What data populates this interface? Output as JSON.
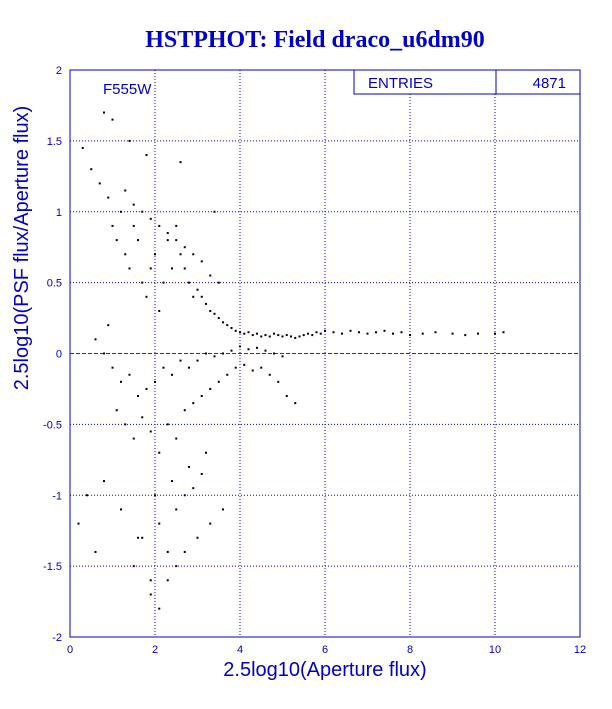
{
  "chart_data": {
    "type": "scatter",
    "title": "HSTPHOT: Field draco_u6dm90",
    "xlabel": "2.5log10(Aperture flux)",
    "ylabel": "2.5log10(PSF flux/Aperture flux)",
    "filter_label": "F555W",
    "stats_box": {
      "label": "ENTRIES",
      "value": "4871"
    },
    "xlim": [
      0,
      12
    ],
    "ylim": [
      -2,
      2
    ],
    "x_ticks": [
      "0",
      "2",
      "4",
      "6",
      "8",
      "10",
      "12"
    ],
    "y_ticks": [
      "-2",
      "-1.5",
      "-1",
      "-0.5",
      "0",
      "0.5",
      "1",
      "1.5",
      "2"
    ],
    "grid": true,
    "reference_line": {
      "y": 0
    },
    "colors": {
      "axes": "#0000cc",
      "grid": "#0000cc",
      "title": "#0000cc",
      "points": "#000000",
      "reference_line": "#cc0000",
      "background": "#ffffff"
    },
    "points": {
      "x": [
        0.6,
        0.8,
        0.9,
        1.0,
        1.1,
        1.2,
        1.3,
        1.4,
        1.5,
        1.6,
        1.7,
        1.8,
        1.9,
        2.0,
        2.1,
        2.2,
        2.3,
        2.4,
        2.5,
        2.6,
        2.7,
        2.8,
        2.9,
        3.0,
        3.1,
        3.2,
        3.3,
        3.4,
        3.5,
        3.6,
        3.7,
        3.8,
        3.9,
        4.0,
        4.1,
        4.2,
        4.3,
        4.4,
        4.5,
        4.6,
        4.7,
        4.8,
        4.9,
        5.0,
        5.1,
        5.2,
        5.3,
        5.4,
        5.5,
        5.6,
        5.7,
        5.8,
        5.9,
        6.0,
        6.2,
        6.4,
        6.6,
        6.8,
        7.0,
        7.2,
        7.4,
        7.6,
        7.8,
        8.0,
        8.3,
        8.6,
        9.0,
        9.3,
        9.6,
        10.0,
        10.2,
        1.0,
        1.2,
        1.4,
        1.6,
        1.8,
        2.0,
        2.2,
        2.4,
        2.6,
        2.8,
        3.0,
        3.2,
        3.4,
        3.6,
        3.8,
        4.0,
        4.2,
        4.4,
        4.6,
        4.8,
        5.0,
        1.1,
        1.3,
        1.5,
        1.7,
        1.9,
        2.1,
        2.3,
        2.5,
        2.7,
        2.9,
        3.1,
        3.3,
        3.5,
        3.7,
        3.9,
        4.1,
        4.3,
        4.5,
        4.7,
        4.9,
        5.1,
        5.3,
        0.3,
        0.5,
        0.7,
        0.9,
        1.3,
        1.5,
        1.7,
        1.9,
        2.1,
        2.3,
        2.5,
        2.7,
        2.9,
        3.1,
        3.3,
        3.5,
        0.2,
        0.4,
        0.6,
        0.8,
        1.2,
        1.6,
        2.0,
        2.4,
        2.8,
        3.2,
        1.5,
        1.7,
        1.9,
        2.1,
        2.3,
        2.5,
        2.7,
        2.9,
        3.1,
        1.9,
        2.1,
        2.3,
        2.5,
        2.7,
        3.0,
        3.3,
        3.6,
        0.8,
        1.0,
        1.4,
        1.8,
        2.6,
        3.4
      ],
      "y": [
        0.1,
        0.0,
        0.2,
        0.9,
        0.8,
        1.0,
        0.7,
        0.6,
        0.9,
        0.8,
        0.5,
        0.4,
        0.6,
        0.7,
        0.3,
        0.5,
        0.8,
        0.6,
        0.9,
        0.7,
        0.6,
        0.5,
        0.4,
        0.45,
        0.4,
        0.35,
        0.3,
        0.28,
        0.25,
        0.22,
        0.2,
        0.18,
        0.16,
        0.15,
        0.14,
        0.15,
        0.13,
        0.14,
        0.12,
        0.13,
        0.12,
        0.14,
        0.13,
        0.12,
        0.13,
        0.12,
        0.11,
        0.12,
        0.13,
        0.14,
        0.13,
        0.15,
        0.14,
        0.16,
        0.15,
        0.14,
        0.16,
        0.15,
        0.14,
        0.15,
        0.16,
        0.14,
        0.15,
        0.13,
        0.14,
        0.15,
        0.14,
        0.13,
        0.14,
        0.14,
        0.15,
        -0.1,
        -0.2,
        -0.15,
        -0.3,
        -0.25,
        -0.2,
        -0.1,
        -0.15,
        -0.05,
        -0.1,
        -0.05,
        0.0,
        -0.02,
        0.0,
        0.02,
        0.05,
        0.03,
        0.04,
        0.02,
        0.0,
        -0.02,
        -0.4,
        -0.5,
        -0.6,
        -0.45,
        -0.55,
        -0.7,
        -0.5,
        -0.6,
        -0.4,
        -0.35,
        -0.3,
        -0.25,
        -0.2,
        -0.15,
        -0.1,
        -0.08,
        -0.12,
        -0.1,
        -0.15,
        -0.2,
        -0.3,
        -0.35,
        1.45,
        1.3,
        1.2,
        1.1,
        1.15,
        1.05,
        1.0,
        0.95,
        0.9,
        0.85,
        0.8,
        0.75,
        0.7,
        0.65,
        0.55,
        0.5,
        -1.2,
        -1.0,
        -1.4,
        -0.9,
        -1.1,
        -1.3,
        -1.0,
        -0.9,
        -0.8,
        -0.7,
        -1.5,
        -1.3,
        -1.6,
        -1.2,
        -1.4,
        -1.1,
        -1.0,
        -0.95,
        -0.85,
        -1.7,
        -1.8,
        -1.6,
        -1.5,
        -1.4,
        -1.3,
        -1.2,
        -1.1,
        1.7,
        1.65,
        1.5,
        1.4,
        1.35,
        1.0
      ]
    }
  }
}
